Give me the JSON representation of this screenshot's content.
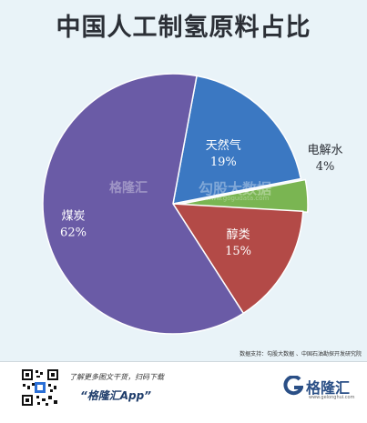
{
  "chart_data": {
    "type": "pie",
    "title": "中国人工制氢原料占比",
    "slices": [
      {
        "name": "天然气",
        "value": 19,
        "label": "19%",
        "color": "#3b78c2"
      },
      {
        "name": "电解水",
        "value": 4,
        "label": "4%",
        "color": "#7ab552"
      },
      {
        "name": "醇类",
        "value": 15,
        "label": "15%",
        "color": "#b34a47"
      },
      {
        "name": "煤炭",
        "value": 62,
        "label": "62%",
        "color": "#6a5ba6"
      }
    ],
    "start_angle_deg": 10.5,
    "direction": "clockwise"
  },
  "source_text": "数据支持：勾股大数据 、中国石油勘探开发研究院",
  "watermark": {
    "brand": "格隆汇",
    "text": "勾股大数据",
    "url": "www.gogudata.com"
  },
  "footer": {
    "line1": "了解更多图文干货，扫码下载",
    "line2": "“格隆汇App”",
    "logo_text": "格隆汇",
    "logo_url": "www.gelonghui.com"
  }
}
